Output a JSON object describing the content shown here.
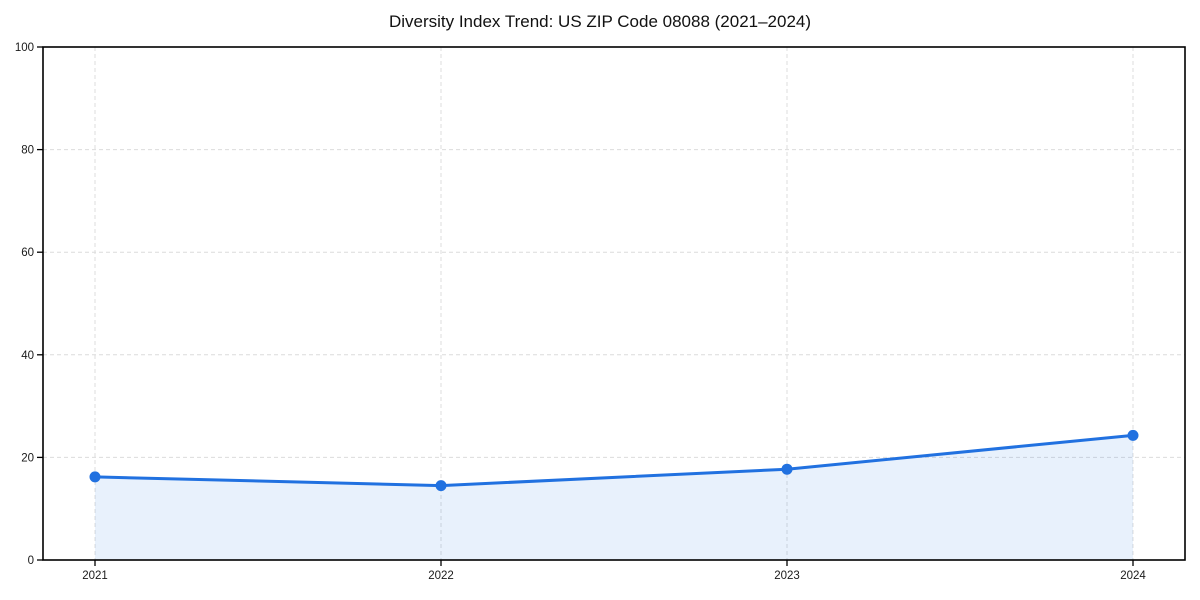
{
  "chart_data": {
    "type": "area",
    "title": "Diversity Index Trend: US ZIP Code 08088 (2021–2024)",
    "categories": [
      "2021",
      "2022",
      "2023",
      "2024"
    ],
    "series": [
      {
        "name": "Diversity Index",
        "values": [
          16.2,
          14.5,
          17.7,
          24.3
        ]
      }
    ],
    "xlabel": "",
    "ylabel": "",
    "ylim": [
      0,
      100
    ],
    "yticks": [
      0,
      20,
      40,
      60,
      80,
      100
    ],
    "grid": true,
    "grid_style": "dashed",
    "legend_position": "none",
    "colors": {
      "line": "#2171e0",
      "marker": "#2171e0",
      "fill": "#2171e0",
      "fill_opacity": 0.1,
      "grid": "#dcdcdc",
      "spine": "#000000",
      "tick_label": "#1a1a1a",
      "background": "#ffffff"
    }
  }
}
